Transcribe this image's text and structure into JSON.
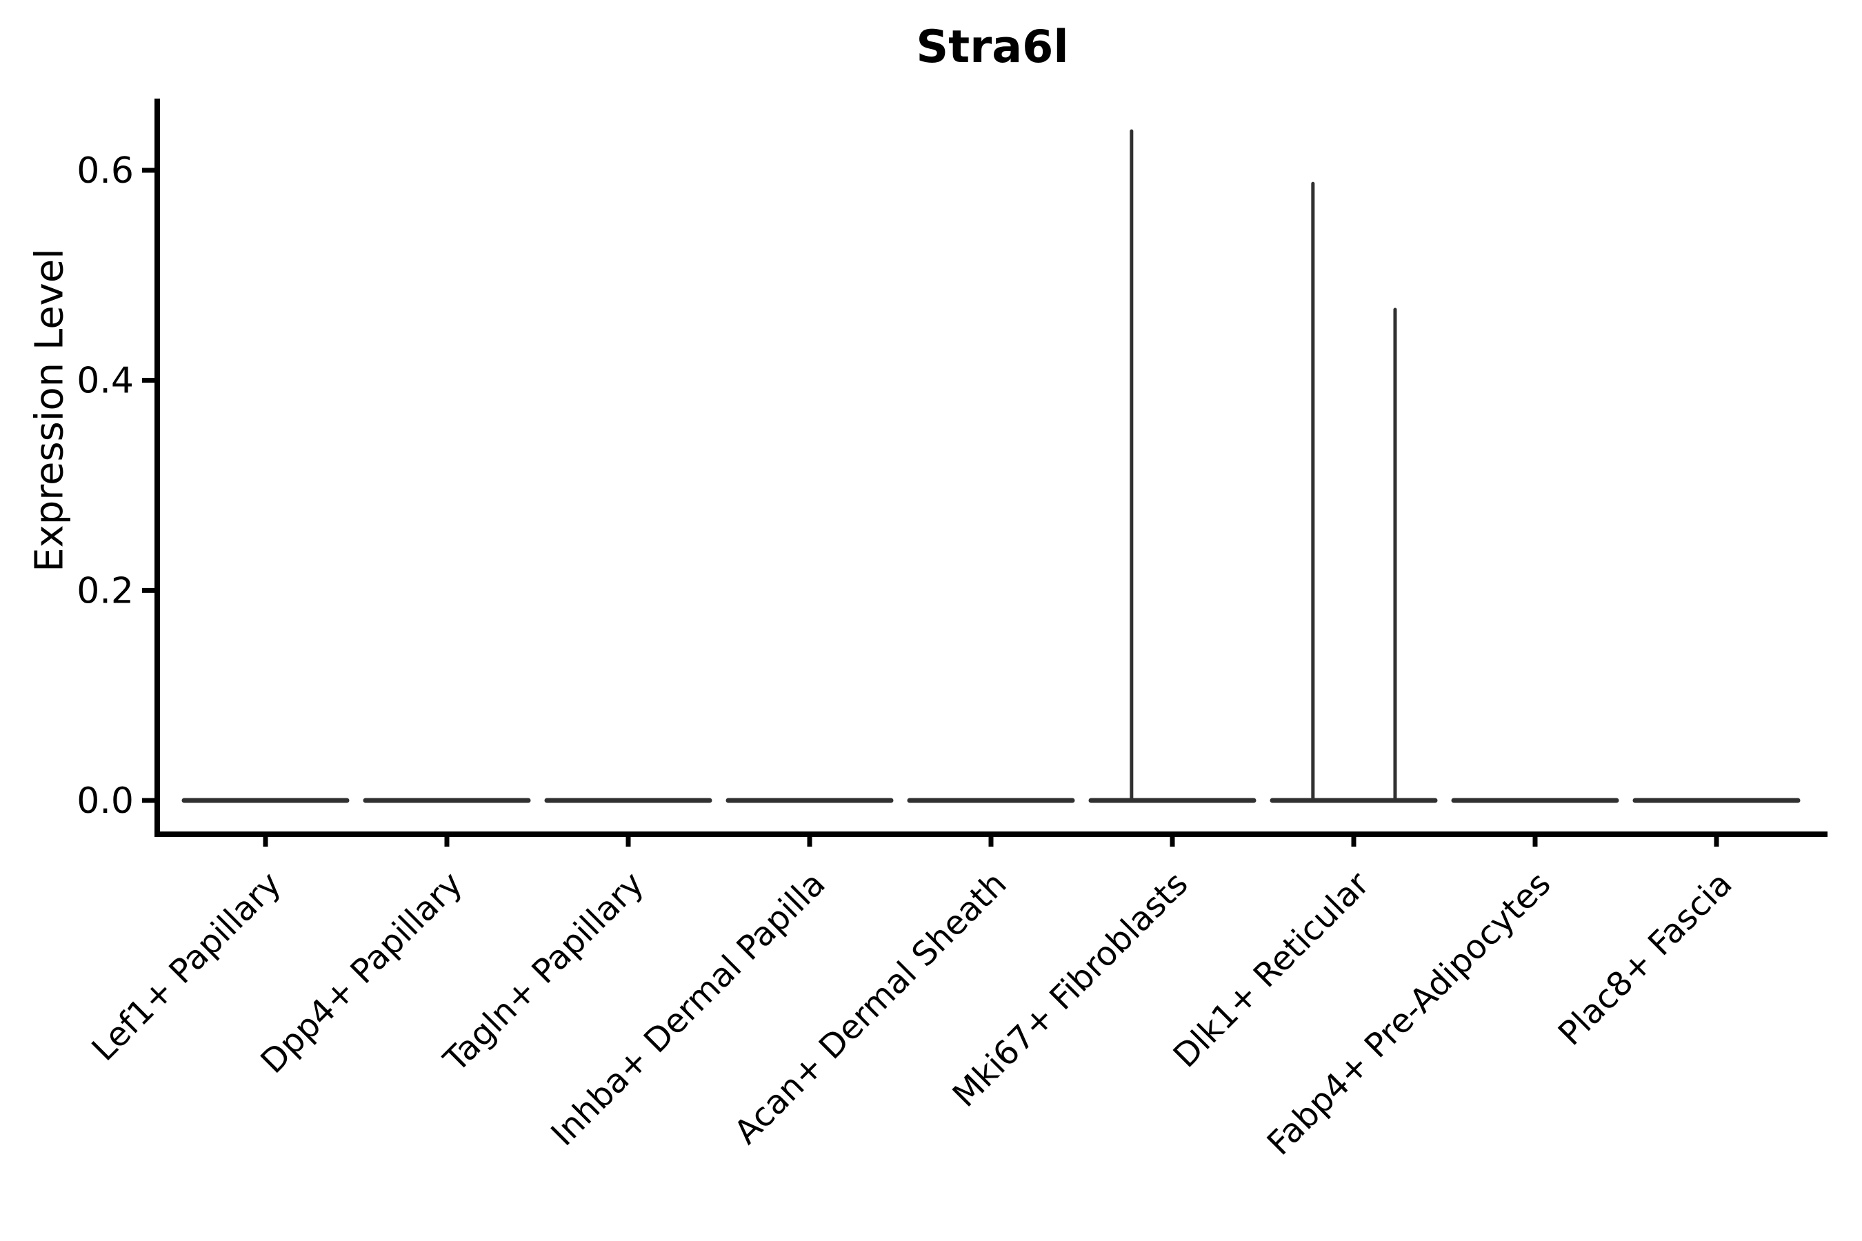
{
  "figure": {
    "title": "Stra6l",
    "background_color": "#ffffff"
  },
  "chart_data": {
    "type": "violin",
    "title": "Stra6l",
    "xlabel": "",
    "ylabel": "Expression Level",
    "categories": [
      "Lef1+ Papillary",
      "Dpp4+ Papillary",
      "Tagln+ Papillary",
      "Inhba+ Dermal Papilla",
      "Acan+ Dermal Sheath",
      "Mki67+ Fibroblasts",
      "Dlk1+ Reticular",
      "Fabp4+ Pre-Adipocytes",
      "Plac8+ Fascia"
    ],
    "ytick_labels": [
      "0.0",
      "0.2",
      "0.4",
      "0.6"
    ],
    "ytick_values": [
      0.0,
      0.2,
      0.4,
      0.6
    ],
    "ylim": [
      -0.032,
      0.7
    ],
    "grid": false,
    "legend": null,
    "xtick_rotation_deg": 45,
    "violins": [
      {
        "category": "Lef1+ Papillary",
        "baseline_value": 0.0,
        "max_expression": 0.0,
        "spikes": []
      },
      {
        "category": "Dpp4+ Papillary",
        "baseline_value": 0.0,
        "max_expression": 0.0,
        "spikes": []
      },
      {
        "category": "Tagln+ Papillary",
        "baseline_value": 0.0,
        "max_expression": 0.0,
        "spikes": []
      },
      {
        "category": "Inhba+ Dermal Papilla",
        "baseline_value": 0.0,
        "max_expression": 0.0,
        "spikes": []
      },
      {
        "category": "Acan+ Dermal Sheath",
        "baseline_value": 0.0,
        "max_expression": 0.0,
        "spikes": []
      },
      {
        "category": "Mki67+ Fibroblasts",
        "baseline_value": 0.0,
        "max_expression": 0.64,
        "spikes": [
          {
            "offset_frac": -0.225,
            "value": 0.64
          }
        ]
      },
      {
        "category": "Dlk1+ Reticular",
        "baseline_value": 0.0,
        "max_expression": 0.59,
        "spikes": [
          {
            "offset_frac": -0.225,
            "value": 0.59
          },
          {
            "offset_frac": 0.228,
            "value": 0.47
          }
        ]
      },
      {
        "category": "Fabp4+ Pre-Adipocytes",
        "baseline_value": 0.0,
        "max_expression": 0.0,
        "spikes": []
      },
      {
        "category": "Plac8+ Fascia",
        "baseline_value": 0.0,
        "max_expression": 0.0,
        "spikes": []
      }
    ],
    "colors": {
      "axis": "#000000",
      "text": "#000000",
      "violin_stroke": "#303030"
    }
  }
}
